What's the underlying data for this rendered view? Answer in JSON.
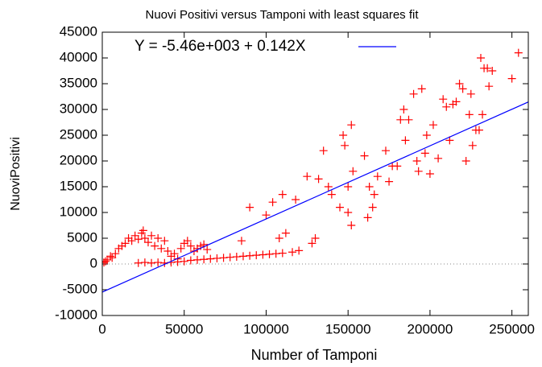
{
  "chart_data": {
    "type": "scatter",
    "title": "Nuovi Positivi versus Tamponi with least squares fit",
    "x_label": "Number of Tamponi",
    "y_label": "NuoviPositivi",
    "xlim": [
      0,
      260000
    ],
    "ylim": [
      -10000,
      45000
    ],
    "xticks": [
      0,
      50000,
      100000,
      150000,
      200000,
      250000
    ],
    "yticks": [
      -10000,
      -5000,
      0,
      5000,
      10000,
      15000,
      20000,
      25000,
      30000,
      35000,
      40000,
      45000
    ],
    "zeroaxis": true,
    "legend": "top-left",
    "series": [
      {
        "type": "scatter",
        "color": "#ff0000",
        "x": [
          1000,
          3000,
          5000,
          2000,
          6000,
          8000,
          10000,
          12000,
          14000,
          16000,
          18000,
          20000,
          22000,
          24000,
          25000,
          26000,
          28000,
          30000,
          32000,
          34000,
          36000,
          38000,
          40000,
          42000,
          44000,
          46000,
          48000,
          50000,
          52000,
          54000,
          56000,
          58000,
          60000,
          62000,
          64000,
          22000,
          26000,
          30000,
          34000,
          38000,
          42000,
          46000,
          50000,
          54000,
          58000,
          62000,
          66000,
          70000,
          74000,
          78000,
          82000,
          86000,
          90000,
          94000,
          98000,
          102000,
          106000,
          110000,
          116000,
          120000,
          85000,
          90000,
          100000,
          104000,
          108000,
          110000,
          112000,
          118000,
          125000,
          128000,
          130000,
          132000,
          135000,
          138000,
          140000,
          145000,
          147000,
          148000,
          150000,
          150000,
          152000,
          152000,
          153000,
          160000,
          162000,
          163000,
          165000,
          166000,
          168000,
          173000,
          175000,
          177000,
          180000,
          182000,
          184000,
          185000,
          187000,
          190000,
          192000,
          193000,
          195000,
          197000,
          198000,
          200000,
          202000,
          205000,
          208000,
          210000,
          212000,
          214000,
          216000,
          218000,
          220000,
          222000,
          224000,
          225000,
          226000,
          228000,
          230000,
          231000,
          232000,
          233000,
          235000,
          236000,
          238000,
          250000,
          254000
        ],
        "values": [
          300,
          800,
          1500,
          500,
          1200,
          2000,
          3000,
          3500,
          4000,
          5000,
          4500,
          5500,
          4800,
          6000,
          6500,
          5000,
          4200,
          5500,
          3500,
          5000,
          3000,
          4500,
          2500,
          1500,
          2000,
          1000,
          3000,
          4000,
          4500,
          3500,
          2500,
          3000,
          3500,
          3800,
          2800,
          200,
          300,
          200,
          300,
          200,
          300,
          400,
          500,
          700,
          800,
          900,
          1000,
          1100,
          1200,
          1300,
          1400,
          1500,
          1600,
          1700,
          1800,
          1900,
          2000,
          2100,
          2300,
          2600,
          4500,
          11000,
          9500,
          12000,
          5000,
          13500,
          6000,
          12500,
          17000,
          4000,
          5000,
          16500,
          22000,
          15000,
          13500,
          11000,
          25000,
          23000,
          10000,
          15000,
          27000,
          7500,
          18000,
          21000,
          9000,
          15000,
          11000,
          13500,
          17000,
          22000,
          16000,
          19000,
          19000,
          28000,
          30000,
          24000,
          28000,
          33000,
          20000,
          18000,
          34000,
          21500,
          25000,
          17500,
          27000,
          20500,
          32000,
          30500,
          24000,
          31000,
          31500,
          35000,
          34000,
          20000,
          29000,
          33000,
          23000,
          26000,
          26000,
          40000,
          29000,
          38000,
          38000,
          34500,
          37500,
          36000,
          41000
        ]
      },
      {
        "type": "line",
        "name": "Y = -5.46e+003 + 0.142X",
        "color": "#0000ff",
        "x": [
          0,
          260000
        ],
        "values": [
          -5460,
          31460
        ]
      }
    ]
  }
}
